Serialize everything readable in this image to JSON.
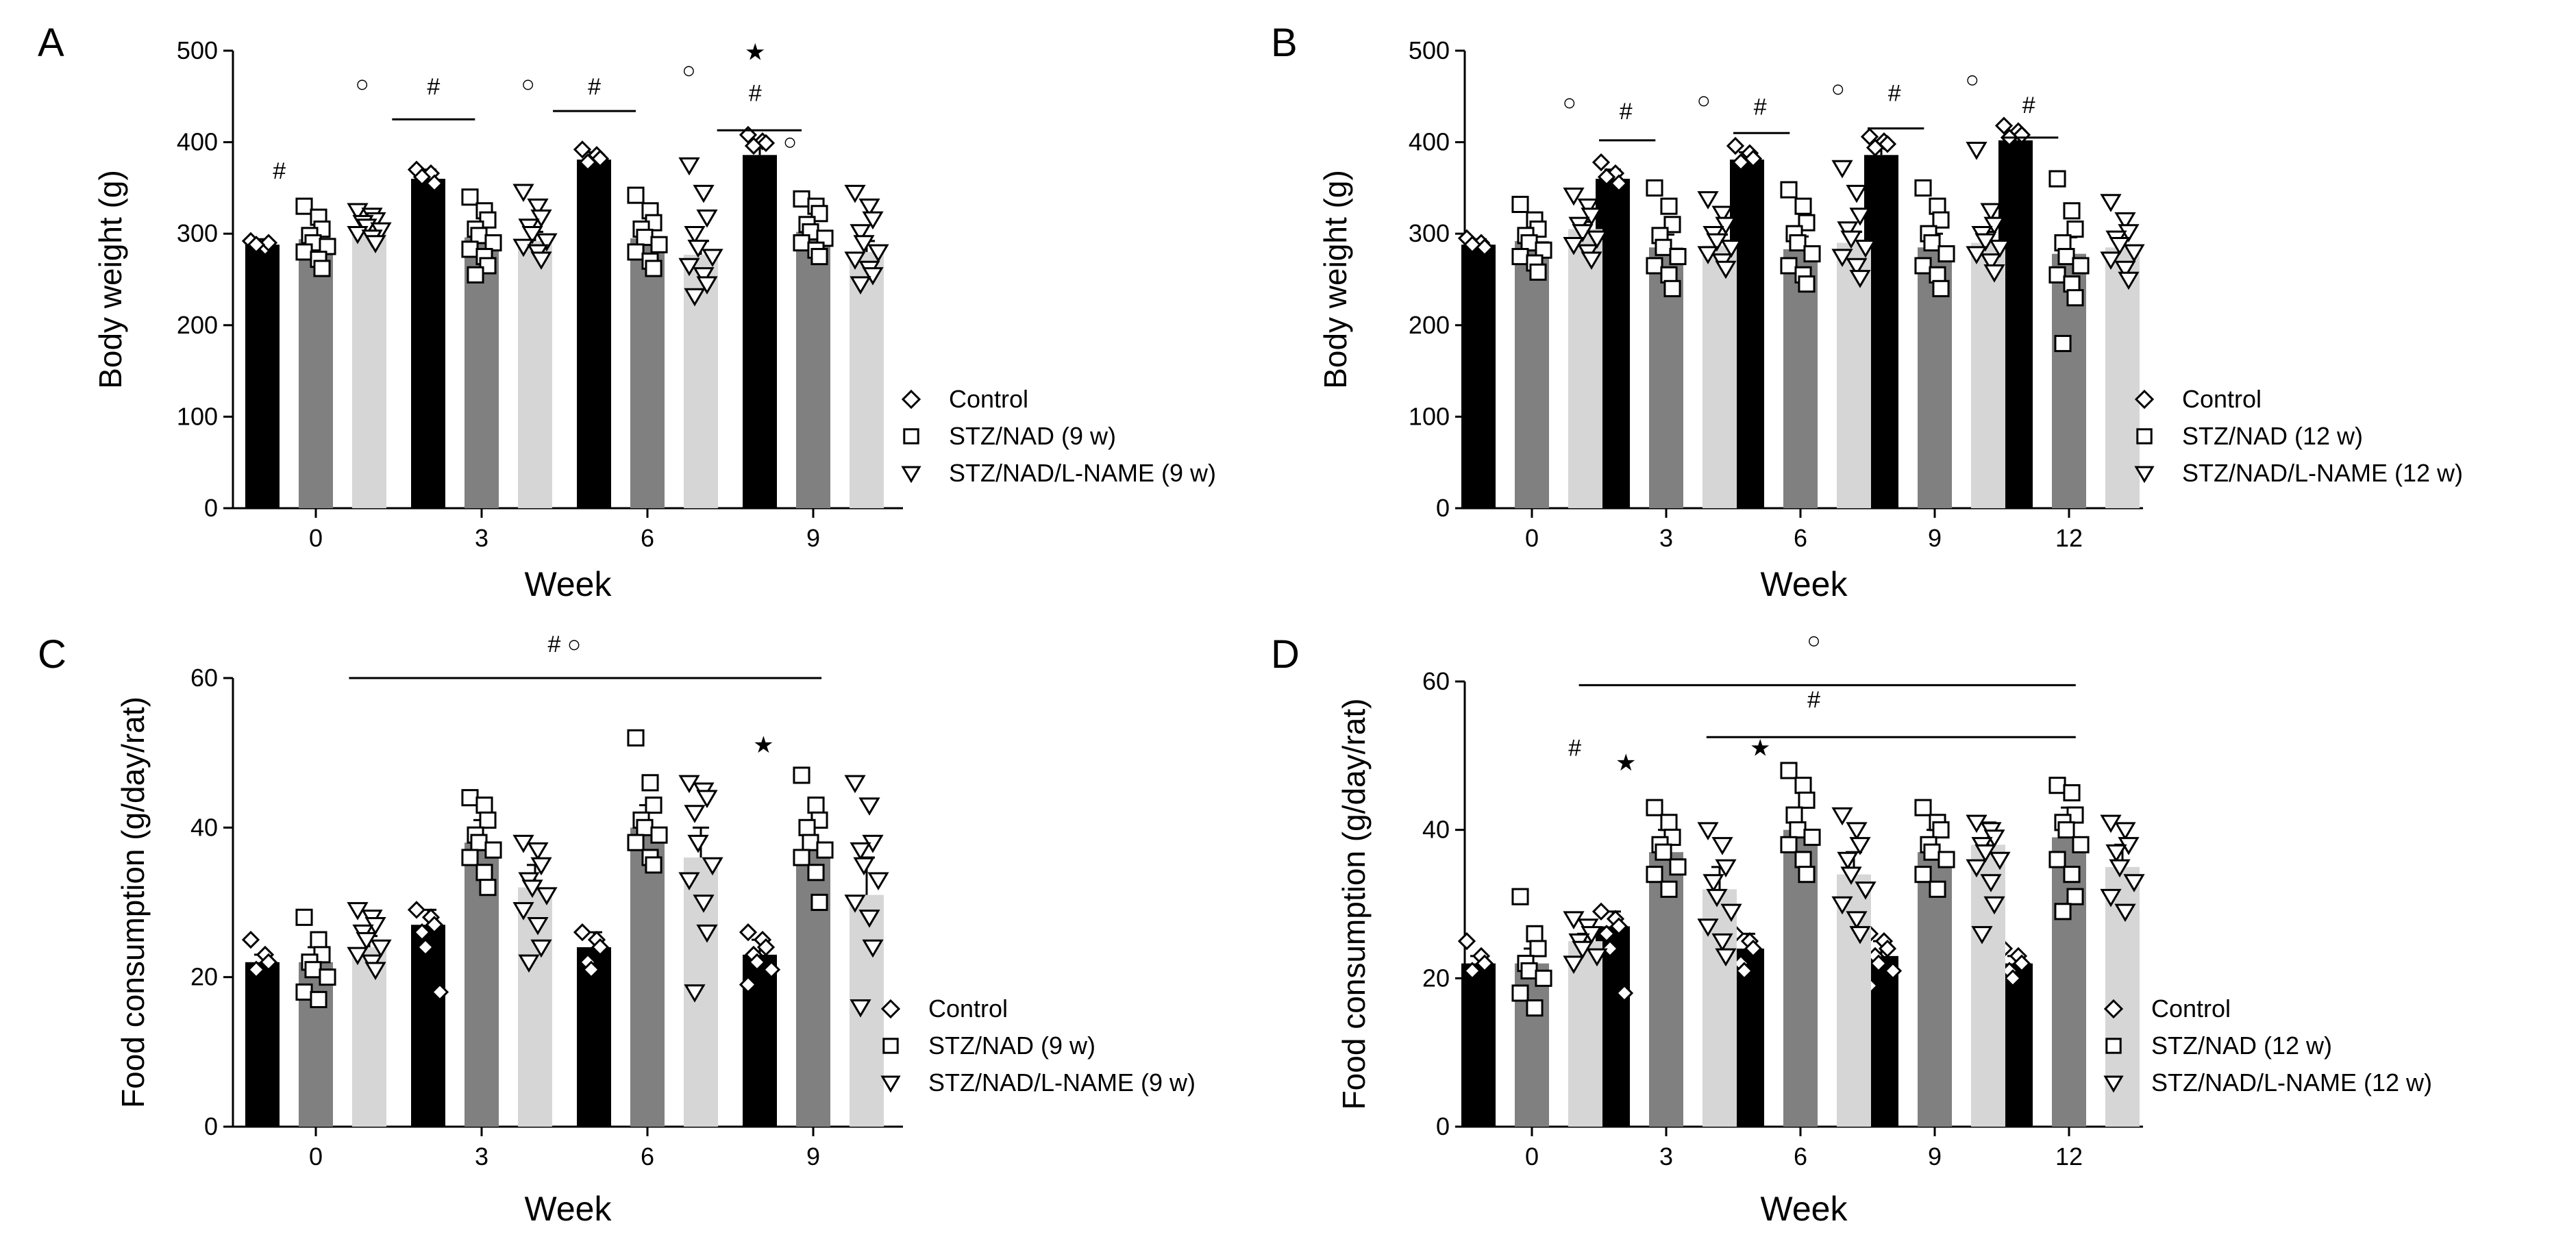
{
  "figure": {
    "colors": {
      "control": "#000000",
      "stz": "#808080",
      "lname": "#d6d6d6",
      "axis": "#000000"
    }
  },
  "chart_data": [
    {
      "type": "bar",
      "panel": "A",
      "xlabel": "Week",
      "ylabel": "Body weight (g)",
      "ylim": [
        0,
        500
      ],
      "yticks": [
        0,
        100,
        200,
        300,
        400,
        500
      ],
      "categories": [
        "0",
        "3",
        "6",
        "9"
      ],
      "series": [
        {
          "name": "Control",
          "marker": "diamond",
          "values": [
            288,
            360,
            381,
            386
          ],
          "errors": [
            6,
            10,
            8,
            15
          ],
          "points": [
            [
              292,
              285,
              290,
              288
            ],
            [
              370,
              366,
              355,
              362
            ],
            [
              392,
              386,
              382,
              378
            ],
            [
              408,
              401,
              399,
              396
            ]
          ]
        },
        {
          "name": "STZ/NAD (9 w)",
          "marker": "square",
          "values": [
            294,
            296,
            295,
            302
          ],
          "errors": [
            10,
            13,
            12,
            12
          ],
          "points": [
            [
              330,
              318,
              305,
              298,
              290,
              286,
              280,
              272,
              262
            ],
            [
              340,
              325,
              315,
              305,
              298,
              290,
              283,
              275,
              265,
              255
            ],
            [
              342,
              325,
              312,
              305,
              296,
              288,
              280,
              270,
              262
            ],
            [
              338,
              330,
              322,
              310,
              302,
              295,
              290,
              282,
              275
            ]
          ]
        },
        {
          "name": "STZ/NAD/L-NAME (9 w)",
          "marker": "triangle",
          "values": [
            305,
            292,
            277,
            280
          ],
          "errors": [
            8,
            10,
            15,
            12
          ],
          "points": [
            [
              325,
              320,
              315,
              312,
              308,
              304,
              300,
              296,
              290
            ],
            [
              346,
              330,
              318,
              308,
              300,
              292,
              286,
              280,
              272
            ],
            [
              375,
              345,
              318,
              300,
              285,
              275,
              265,
              255,
              245,
              232
            ],
            [
              345,
              330,
              316,
              302,
              290,
              280,
              272,
              262,
              255,
              245
            ]
          ]
        }
      ],
      "annotations": [
        {
          "text": "#",
          "x": 0.28,
          "y": 360
        },
        {
          "text": "○",
          "x": 0.78,
          "y": 455
        },
        {
          "text": "#",
          "x": 1.21,
          "y": 452,
          "line": [
            0.96,
            1.46,
            425
          ]
        },
        {
          "text": "○",
          "x": 1.78,
          "y": 455
        },
        {
          "text": "#",
          "x": 2.18,
          "y": 452,
          "line": [
            1.93,
            2.43,
            434
          ]
        },
        {
          "text": "○",
          "x": 2.75,
          "y": 470
        },
        {
          "text": "★",
          "x": 3.15,
          "y": 490
        },
        {
          "text": "#",
          "x": 3.15,
          "y": 445,
          "line": [
            2.92,
            3.43,
            413
          ]
        },
        {
          "text": "○",
          "x": 3.36,
          "y": 392
        }
      ],
      "legend": [
        "Control",
        "STZ/NAD (9 w)",
        "STZ/NAD/L-NAME (9 w)"
      ]
    },
    {
      "type": "bar",
      "panel": "B",
      "xlabel": "Week",
      "ylabel": "Body weight (g)",
      "ylim": [
        0,
        500
      ],
      "yticks": [
        0,
        100,
        200,
        300,
        400,
        500
      ],
      "categories": [
        "0",
        "3",
        "6",
        "9",
        "12"
      ],
      "series": [
        {
          "name": "Control",
          "marker": "diamond",
          "values": [
            288,
            360,
            381,
            386,
            402
          ],
          "errors": [
            6,
            10,
            8,
            15,
            8
          ],
          "points": [
            [
              295,
              290,
              285,
              288
            ],
            [
              378,
              366,
              355,
              362
            ],
            [
              396,
              388,
              382,
              378
            ],
            [
              406,
              401,
              398,
              394
            ],
            [
              418,
              412,
              408,
              405
            ]
          ]
        },
        {
          "name": "STZ/NAD (12 w)",
          "marker": "square",
          "values": [
            292,
            285,
            283,
            285,
            278
          ],
          "errors": [
            10,
            14,
            14,
            15,
            18
          ],
          "points": [
            [
              332,
              315,
              305,
              298,
              290,
              282,
              275,
              268,
              258
            ],
            [
              350,
              330,
              310,
              298,
              285,
              275,
              265,
              255,
              240
            ],
            [
              348,
              330,
              312,
              300,
              290,
              278,
              265,
              255,
              245
            ],
            [
              350,
              330,
              315,
              300,
              290,
              278,
              265,
              255,
              240
            ],
            [
              360,
              325,
              305,
              290,
              275,
              265,
              255,
              245,
              230,
              180
            ]
          ]
        },
        {
          "name": "STZ/NAD/L-NAME (12 w)",
          "marker": "triangle",
          "values": [
            305,
            287,
            290,
            290,
            285
          ],
          "errors": [
            8,
            12,
            12,
            12,
            10
          ],
          "points": [
            [
              342,
              330,
              320,
              310,
              302,
              295,
              288,
              280,
              272
            ],
            [
              338,
              322,
              310,
              300,
              292,
              285,
              278,
              270,
              262
            ],
            [
              372,
              345,
              320,
              305,
              295,
              285,
              275,
              265,
              252
            ],
            [
              392,
              325,
              310,
              300,
              292,
              285,
              278,
              270,
              258
            ],
            [
              335,
              315,
              302,
              295,
              288,
              280,
              272,
              262,
              250
            ]
          ]
        }
      ],
      "annotations": [
        {
          "text": "○",
          "x": 0.78,
          "y": 435
        },
        {
          "text": "#",
          "x": 1.2,
          "y": 425,
          "line": [
            1.0,
            1.42,
            402
          ]
        },
        {
          "text": "○",
          "x": 1.78,
          "y": 437
        },
        {
          "text": "#",
          "x": 2.2,
          "y": 430,
          "line": [
            2.0,
            2.42,
            410
          ]
        },
        {
          "text": "○",
          "x": 2.78,
          "y": 450
        },
        {
          "text": "#",
          "x": 3.2,
          "y": 445,
          "line": [
            3.0,
            3.42,
            415
          ]
        },
        {
          "text": "○",
          "x": 3.78,
          "y": 460
        },
        {
          "text": "#",
          "x": 4.2,
          "y": 432,
          "line": [
            4.0,
            4.42,
            405
          ]
        }
      ],
      "legend": [
        "Control",
        "STZ/NAD (12 w)",
        "STZ/NAD/L-NAME (12 w)"
      ]
    },
    {
      "type": "bar",
      "panel": "C",
      "xlabel": "Week",
      "ylabel": "Food consumption (g/day/rat)",
      "ylim": [
        0,
        60
      ],
      "yticks": [
        0,
        20,
        40,
        60
      ],
      "categories": [
        "0",
        "3",
        "6",
        "9"
      ],
      "series": [
        {
          "name": "Control",
          "marker": "diamond",
          "values": [
            22,
            27,
            24,
            23
          ],
          "errors": [
            1,
            2,
            2,
            2
          ],
          "points": [
            [
              25,
              23,
              22,
              21
            ],
            [
              29,
              28,
              27,
              26,
              24,
              18
            ],
            [
              26,
              25,
              24,
              22,
              21
            ],
            [
              26,
              25,
              24,
              23,
              22,
              21,
              19
            ]
          ]
        },
        {
          "name": "STZ/NAD (9 w)",
          "marker": "square",
          "values": [
            22,
            38,
            40,
            37
          ],
          "errors": [
            2,
            3,
            3,
            3
          ],
          "points": [
            [
              28,
              25,
              23,
              22,
              21,
              20,
              18,
              17
            ],
            [
              44,
              43,
              41,
              39,
              38,
              37,
              36,
              34,
              32
            ],
            [
              52,
              46,
              43,
              41,
              40,
              39,
              38,
              36,
              35
            ],
            [
              47,
              43,
              41,
              40,
              38,
              37,
              36,
              34,
              30
            ]
          ]
        },
        {
          "name": "STZ/NAD/L-NAME (9 w)",
          "marker": "triangle",
          "values": [
            24,
            32,
            36,
            31
          ],
          "errors": [
            1.5,
            3,
            4,
            5
          ],
          "points": [
            [
              29,
              28,
              27,
              26,
              25,
              24,
              23,
              22,
              21
            ],
            [
              38,
              37,
              35,
              33,
              32,
              31,
              29,
              27,
              24,
              22
            ],
            [
              46,
              45,
              44,
              42,
              38,
              35,
              33,
              30,
              26,
              18
            ],
            [
              46,
              43,
              38,
              37,
              35,
              33,
              30,
              28,
              24,
              16
            ]
          ]
        }
      ],
      "annotations": [
        {
          "text": "# ○",
          "x": 2.0,
          "y": 63.5,
          "line": [
            0.7,
            3.55,
            60
          ]
        },
        {
          "text": "★",
          "x": 3.2,
          "y": 50
        }
      ],
      "legend": [
        "Control",
        "STZ/NAD (9 w)",
        "STZ/NAD/L-NAME (9 w)"
      ]
    },
    {
      "type": "bar",
      "panel": "D",
      "xlabel": "Week",
      "ylabel": "Food consumption (g/day/rat)",
      "ylim": [
        0,
        60
      ],
      "yticks": [
        0,
        20,
        40,
        60
      ],
      "categories": [
        "0",
        "3",
        "6",
        "9",
        "12"
      ],
      "series": [
        {
          "name": "Control",
          "marker": "diamond",
          "values": [
            22,
            27,
            24,
            23,
            22
          ],
          "errors": [
            1,
            2,
            2,
            2,
            1
          ],
          "points": [
            [
              25,
              23,
              22,
              21
            ],
            [
              29,
              28,
              27,
              26,
              24,
              18
            ],
            [
              26,
              25,
              24,
              22,
              21
            ],
            [
              26,
              25,
              24,
              23,
              22,
              21,
              19
            ],
            [
              24,
              23,
              22,
              21,
              20
            ]
          ]
        },
        {
          "name": "STZ/NAD (12 w)",
          "marker": "square",
          "values": [
            22,
            37,
            40,
            37,
            39
          ],
          "errors": [
            2,
            3,
            3,
            3,
            4
          ],
          "points": [
            [
              31,
              26,
              24,
              22,
              21,
              20,
              18,
              16
            ],
            [
              43,
              41,
              39,
              38,
              37,
              35,
              34,
              32
            ],
            [
              48,
              46,
              44,
              42,
              40,
              39,
              38,
              36,
              34
            ],
            [
              43,
              41,
              40,
              38,
              37,
              36,
              34,
              32
            ],
            [
              46,
              45,
              42,
              41,
              40,
              38,
              36,
              34,
              31,
              29
            ]
          ]
        },
        {
          "name": "STZ/NAD/L-NAME (12 w)",
          "marker": "triangle",
          "values": [
            25,
            32,
            34,
            38,
            35
          ],
          "errors": [
            1,
            3,
            3,
            3,
            3
          ],
          "points": [
            [
              28,
              27,
              26,
              25,
              24,
              23,
              22
            ],
            [
              40,
              38,
              35,
              33,
              31,
              29,
              27,
              25,
              23
            ],
            [
              42,
              40,
              38,
              36,
              34,
              32,
              30,
              28,
              26
            ],
            [
              41,
              40,
              39,
              38,
              37,
              36,
              35,
              33,
              30,
              26
            ],
            [
              41,
              40,
              38,
              37,
              35,
              33,
              31,
              29
            ]
          ]
        }
      ],
      "annotations": [
        {
          "text": "○",
          "x": 2.6,
          "y": 64.5,
          "line": [
            0.85,
            4.55,
            59.5
          ]
        },
        {
          "text": "#",
          "x": 2.6,
          "y": 56.5,
          "line": [
            1.8,
            4.55,
            52.5
          ]
        },
        {
          "text": "#",
          "x": 0.82,
          "y": 50
        },
        {
          "text": "★",
          "x": 1.2,
          "y": 48
        },
        {
          "text": "★",
          "x": 2.2,
          "y": 50
        }
      ],
      "legend": [
        "Control",
        "STZ/NAD (12 w)",
        "STZ/NAD/L-NAME (12 w)"
      ]
    }
  ]
}
